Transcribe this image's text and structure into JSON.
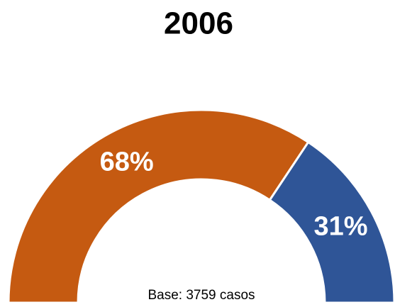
{
  "chart_data": {
    "type": "half_donut",
    "title": "2006",
    "values": [
      68,
      31
    ],
    "value_labels": [
      "68%",
      "31%"
    ],
    "colors": [
      "#C55A11",
      "#2F5597"
    ],
    "annotation": "Base: 3759 casos"
  }
}
